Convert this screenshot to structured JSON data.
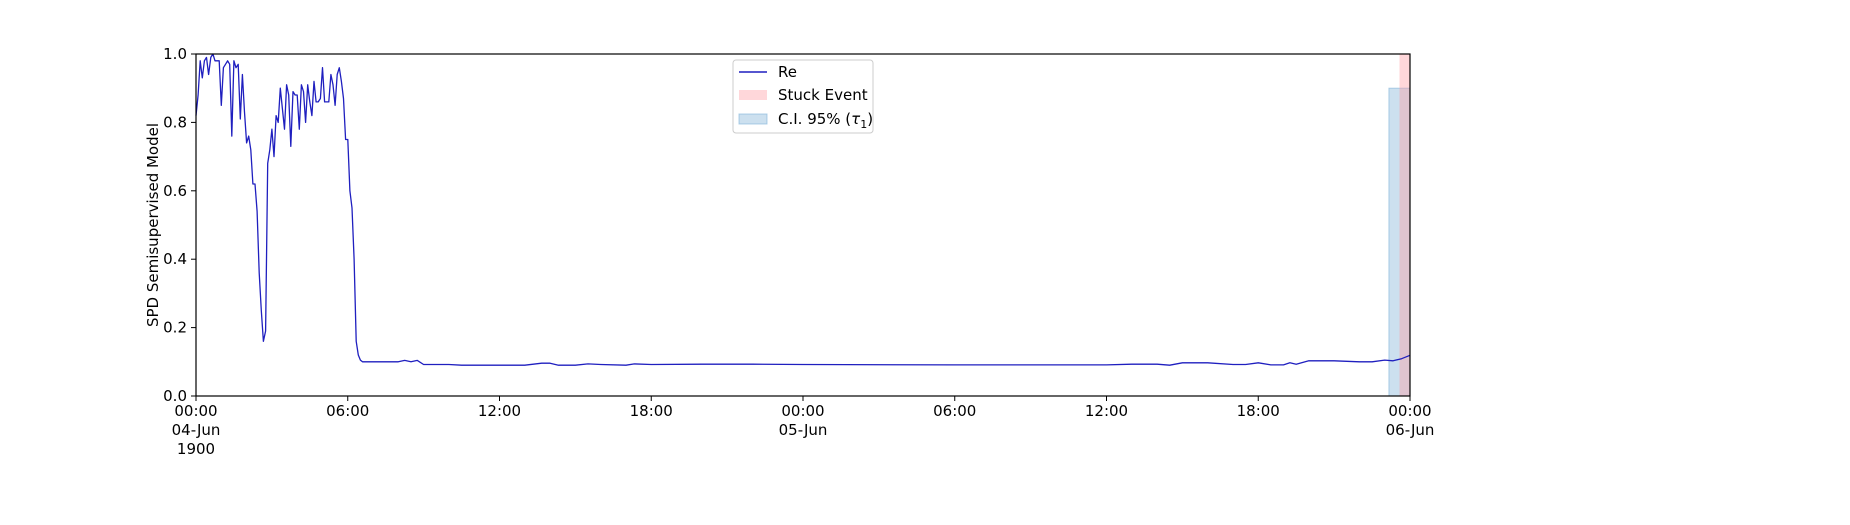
{
  "chart_data": {
    "type": "line",
    "ylabel": "SPD Semisupervised Model",
    "xlabel": "",
    "ylim": [
      0.0,
      1.0
    ],
    "yticks": [
      "0.0",
      "0.2",
      "0.4",
      "0.6",
      "0.8",
      "1.0"
    ],
    "x_start": "1900-06-04 00:00",
    "x_end": "1900-06-06 00:00",
    "xticks": [
      {
        "t": "1900-06-04 00:00",
        "lines": [
          "00:00",
          "04-Jun",
          "1900"
        ]
      },
      {
        "t": "1900-06-04 06:00",
        "lines": [
          "06:00"
        ]
      },
      {
        "t": "1900-06-04 12:00",
        "lines": [
          "12:00"
        ]
      },
      {
        "t": "1900-06-04 18:00",
        "lines": [
          "18:00"
        ]
      },
      {
        "t": "1900-06-05 00:00",
        "lines": [
          "00:00",
          "05-Jun"
        ]
      },
      {
        "t": "1900-06-05 06:00",
        "lines": [
          "06:00"
        ]
      },
      {
        "t": "1900-06-05 12:00",
        "lines": [
          "12:00"
        ]
      },
      {
        "t": "1900-06-05 18:00",
        "lines": [
          "18:00"
        ]
      },
      {
        "t": "1900-06-06 00:00",
        "lines": [
          "00:00",
          "06-Jun"
        ]
      }
    ],
    "grid": false,
    "legend_position": "upper center",
    "legend": {
      "line": "Re",
      "stuck": "Stuck Event",
      "ci_prefix": "C.I. 95% (",
      "ci_symbol": "τ",
      "ci_sub": "1",
      "ci_suffix": ")"
    },
    "colors": {
      "line": "#1f1fbf",
      "stuck": "#ff9aa2",
      "ci": "#7fb2d8"
    },
    "series": [
      {
        "name": "Re",
        "x": [
          "1900-06-04 00:00",
          "1900-06-04 00:05",
          "1900-06-04 00:10",
          "1900-06-04 00:15",
          "1900-06-04 00:20",
          "1900-06-04 00:25",
          "1900-06-04 00:30",
          "1900-06-04 00:35",
          "1900-06-04 00:40",
          "1900-06-04 00:45",
          "1900-06-04 00:50",
          "1900-06-04 00:55",
          "1900-06-04 01:00",
          "1900-06-04 01:05",
          "1900-06-04 01:10",
          "1900-06-04 01:15",
          "1900-06-04 01:20",
          "1900-06-04 01:25",
          "1900-06-04 01:30",
          "1900-06-04 01:35",
          "1900-06-04 01:40",
          "1900-06-04 01:45",
          "1900-06-04 01:50",
          "1900-06-04 01:55",
          "1900-06-04 02:00",
          "1900-06-04 02:05",
          "1900-06-04 02:10",
          "1900-06-04 02:15",
          "1900-06-04 02:20",
          "1900-06-04 02:25",
          "1900-06-04 02:30",
          "1900-06-04 02:35",
          "1900-06-04 02:40",
          "1900-06-04 02:45",
          "1900-06-04 02:50",
          "1900-06-04 02:55",
          "1900-06-04 03:00",
          "1900-06-04 03:05",
          "1900-06-04 03:10",
          "1900-06-04 03:15",
          "1900-06-04 03:20",
          "1900-06-04 03:25",
          "1900-06-04 03:30",
          "1900-06-04 03:35",
          "1900-06-04 03:40",
          "1900-06-04 03:45",
          "1900-06-04 03:50",
          "1900-06-04 03:55",
          "1900-06-04 04:00",
          "1900-06-04 04:05",
          "1900-06-04 04:10",
          "1900-06-04 04:15",
          "1900-06-04 04:20",
          "1900-06-04 04:25",
          "1900-06-04 04:30",
          "1900-06-04 04:35",
          "1900-06-04 04:40",
          "1900-06-04 04:45",
          "1900-06-04 04:50",
          "1900-06-04 04:55",
          "1900-06-04 05:00",
          "1900-06-04 05:05",
          "1900-06-04 05:10",
          "1900-06-04 05:15",
          "1900-06-04 05:20",
          "1900-06-04 05:25",
          "1900-06-04 05:30",
          "1900-06-04 05:35",
          "1900-06-04 05:40",
          "1900-06-04 05:45",
          "1900-06-04 05:50",
          "1900-06-04 05:55",
          "1900-06-04 06:00",
          "1900-06-04 06:05",
          "1900-06-04 06:10",
          "1900-06-04 06:15",
          "1900-06-04 06:20",
          "1900-06-04 06:25",
          "1900-06-04 06:30",
          "1900-06-04 06:35",
          "1900-06-04 06:40",
          "1900-06-04 06:45",
          "1900-06-04 06:50",
          "1900-06-04 06:55",
          "1900-06-04 07:00",
          "1900-06-04 07:05",
          "1900-06-04 07:10",
          "1900-06-04 07:15",
          "1900-06-04 07:20",
          "1900-06-04 07:25",
          "1900-06-04 07:30",
          "1900-06-04 07:35",
          "1900-06-04 07:40",
          "1900-06-04 07:50",
          "1900-06-04 08:00",
          "1900-06-04 08:15",
          "1900-06-04 08:30",
          "1900-06-04 08:45",
          "1900-06-04 09:00",
          "1900-06-04 09:15",
          "1900-06-04 09:30",
          "1900-06-04 10:00",
          "1900-06-04 10:30",
          "1900-06-04 11:00",
          "1900-06-04 12:00",
          "1900-06-04 13:00",
          "1900-06-04 13:40",
          "1900-06-04 14:00",
          "1900-06-04 14:20",
          "1900-06-04 15:00",
          "1900-06-04 15:30",
          "1900-06-04 16:00",
          "1900-06-04 17:00",
          "1900-06-04 17:20",
          "1900-06-04 18:00",
          "1900-06-04 20:00",
          "1900-06-04 22:00",
          "1900-06-05 00:00",
          "1900-06-05 06:00",
          "1900-06-05 12:00",
          "1900-06-05 13:00",
          "1900-06-05 14:00",
          "1900-06-05 14:30",
          "1900-06-05 15:00",
          "1900-06-05 16:00",
          "1900-06-05 17:00",
          "1900-06-05 17:30",
          "1900-06-05 18:00",
          "1900-06-05 18:30",
          "1900-06-05 19:00",
          "1900-06-05 19:15",
          "1900-06-05 19:30",
          "1900-06-05 20:00",
          "1900-06-05 21:00",
          "1900-06-05 22:00",
          "1900-06-05 22:30",
          "1900-06-05 23:00",
          "1900-06-05 23:20",
          "1900-06-05 23:40",
          "1900-06-06 00:00"
        ],
        "y": [
          0.82,
          0.88,
          0.98,
          0.93,
          0.98,
          0.99,
          0.94,
          0.99,
          1.0,
          0.98,
          0.98,
          0.98,
          0.85,
          0.96,
          0.97,
          0.98,
          0.97,
          0.76,
          0.98,
          0.96,
          0.97,
          0.81,
          0.94,
          0.83,
          0.74,
          0.76,
          0.72,
          0.62,
          0.62,
          0.54,
          0.36,
          0.25,
          0.16,
          0.19,
          0.68,
          0.72,
          0.78,
          0.7,
          0.82,
          0.8,
          0.9,
          0.84,
          0.78,
          0.91,
          0.88,
          0.73,
          0.89,
          0.88,
          0.88,
          0.78,
          0.91,
          0.89,
          0.8,
          0.91,
          0.86,
          0.82,
          0.92,
          0.86,
          0.86,
          0.87,
          0.96,
          0.86,
          0.86,
          0.86,
          0.94,
          0.91,
          0.85,
          0.94,
          0.96,
          0.92,
          0.87,
          0.75,
          0.75,
          0.6,
          0.55,
          0.4,
          0.16,
          0.12,
          0.105,
          0.1,
          0.1,
          0.1,
          0.1,
          0.1,
          0.1,
          0.1,
          0.1,
          0.1,
          0.1,
          0.1,
          0.1,
          0.1,
          0.1,
          0.1,
          0.1,
          0.104,
          0.1,
          0.104,
          0.092,
          0.092,
          0.092,
          0.092,
          0.09,
          0.09,
          0.09,
          0.09,
          0.096,
          0.096,
          0.09,
          0.09,
          0.094,
          0.092,
          0.09,
          0.094,
          0.092,
          0.093,
          0.093,
          0.092,
          0.091,
          0.091,
          0.093,
          0.093,
          0.09,
          0.097,
          0.097,
          0.092,
          0.092,
          0.097,
          0.091,
          0.091,
          0.097,
          0.093,
          0.103,
          0.103,
          0.1,
          0.1,
          0.105,
          0.103,
          0.109,
          0.119
        ]
      }
    ],
    "stuck_event": {
      "start": "1900-06-05 23:35",
      "end": "1900-06-06 00:00",
      "ymin": 0.0,
      "ymax": 1.0
    },
    "ci": {
      "start": "1900-06-05 23:10",
      "end": "1900-06-06 00:00",
      "ymin": 0.0,
      "ymax": 0.9
    }
  }
}
